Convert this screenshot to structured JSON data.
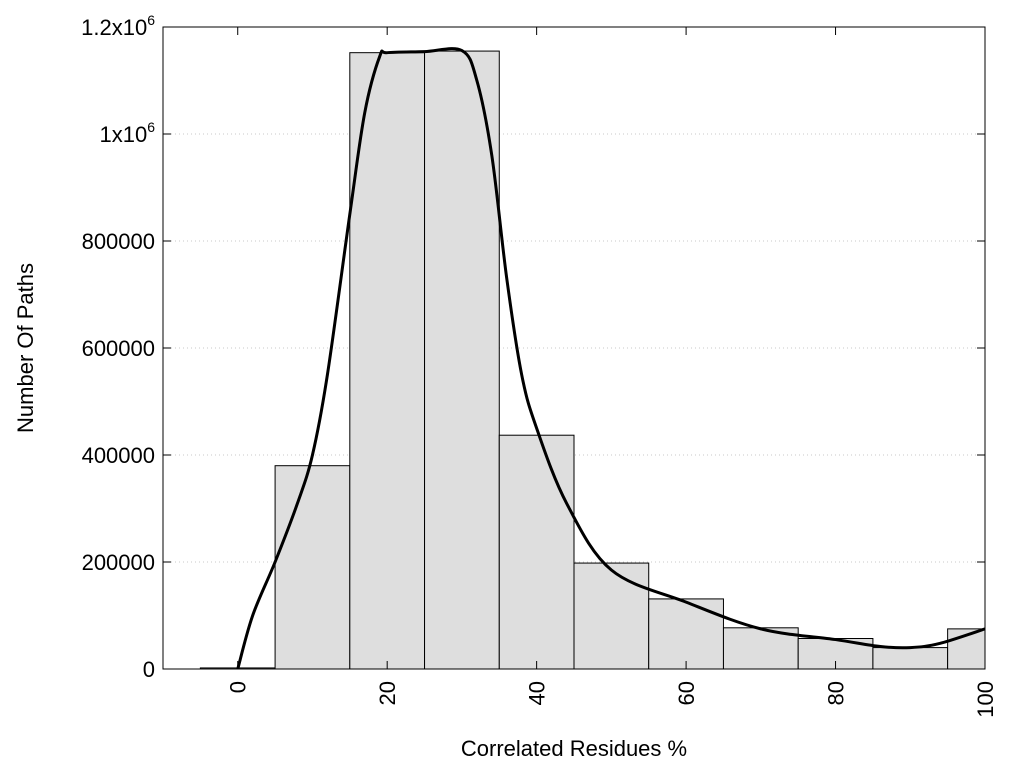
{
  "chart_data": {
    "type": "bar",
    "title": "",
    "xlabel": "Correlated Residues %",
    "ylabel": "Number Of Paths",
    "xlim": [
      -10,
      100
    ],
    "ylim": [
      0,
      1200000
    ],
    "x_ticks": [
      {
        "value": 0,
        "label": "0"
      },
      {
        "value": 20,
        "label": "20"
      },
      {
        "value": 40,
        "label": "40"
      },
      {
        "value": 60,
        "label": "60"
      },
      {
        "value": 80,
        "label": "80"
      },
      {
        "value": 100,
        "label": "100"
      }
    ],
    "y_ticks": [
      {
        "value": 0,
        "label": "0",
        "sup": ""
      },
      {
        "value": 200000,
        "label": "200000",
        "sup": ""
      },
      {
        "value": 400000,
        "label": "400000",
        "sup": ""
      },
      {
        "value": 600000,
        "label": "600000",
        "sup": ""
      },
      {
        "value": 800000,
        "label": "800000",
        "sup": ""
      },
      {
        "value": 1000000,
        "label": "1x10",
        "sup": "6"
      },
      {
        "value": 1200000,
        "label": "1.2x10",
        "sup": "6"
      }
    ],
    "grid": "horizontal-dotted",
    "bar_color": "#dedede",
    "curve_color": "#000000",
    "bins": [
      {
        "center": 0,
        "value": 2000
      },
      {
        "center": 10,
        "value": 380000
      },
      {
        "center": 20,
        "value": 1152000
      },
      {
        "center": 30,
        "value": 1155000
      },
      {
        "center": 40,
        "value": 437000
      },
      {
        "center": 50,
        "value": 198000
      },
      {
        "center": 60,
        "value": 131000
      },
      {
        "center": 70,
        "value": 77000
      },
      {
        "center": 80,
        "value": 57000
      },
      {
        "center": 90,
        "value": 40000
      },
      {
        "center": 100,
        "value": 75000
      }
    ],
    "curve": [
      {
        "x": 0,
        "y": 0
      },
      {
        "x": 2,
        "y": 100000
      },
      {
        "x": 5,
        "y": 200000
      },
      {
        "x": 8,
        "y": 310000
      },
      {
        "x": 10,
        "y": 400000
      },
      {
        "x": 12,
        "y": 550000
      },
      {
        "x": 15,
        "y": 850000
      },
      {
        "x": 17,
        "y": 1040000
      },
      {
        "x": 19,
        "y": 1145000
      },
      {
        "x": 20,
        "y": 1152000
      },
      {
        "x": 25,
        "y": 1154000
      },
      {
        "x": 30,
        "y": 1156000
      },
      {
        "x": 32,
        "y": 1100000
      },
      {
        "x": 34,
        "y": 960000
      },
      {
        "x": 36,
        "y": 730000
      },
      {
        "x": 38,
        "y": 550000
      },
      {
        "x": 40,
        "y": 450000
      },
      {
        "x": 44,
        "y": 310000
      },
      {
        "x": 50,
        "y": 185000
      },
      {
        "x": 60,
        "y": 125000
      },
      {
        "x": 70,
        "y": 75000
      },
      {
        "x": 80,
        "y": 55000
      },
      {
        "x": 86,
        "y": 42000
      },
      {
        "x": 90,
        "y": 40000
      },
      {
        "x": 94,
        "y": 48000
      },
      {
        "x": 100,
        "y": 75000
      }
    ]
  }
}
